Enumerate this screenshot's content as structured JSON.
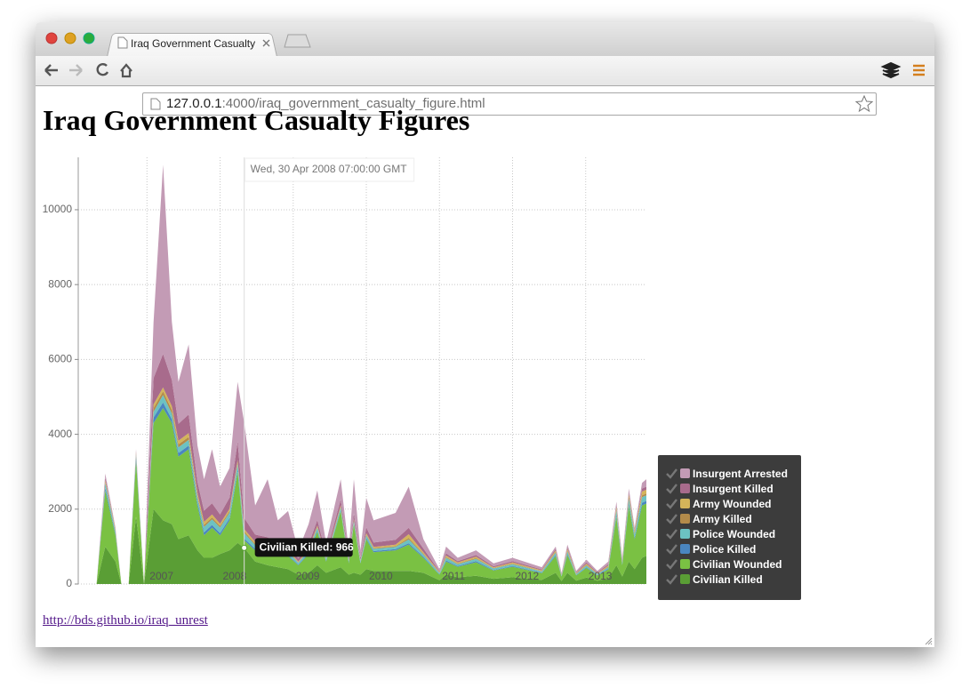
{
  "browser": {
    "tab_title": "Iraq Government Casualty",
    "url_host": "127.0.0.1",
    "url_rest": ":4000/iraq_government_casualty_figure.html"
  },
  "page": {
    "heading": "Iraq Government Casualty Figures",
    "link": "http://bds.github.io/iraq_unrest"
  },
  "chart_data": {
    "type": "stacked_area",
    "x": [
      2006.31,
      2006.43,
      2006.57,
      2006.65,
      2006.75,
      2006.85,
      2006.96,
      2007.09,
      2007.22,
      2007.34,
      2007.43,
      2007.57,
      2007.69,
      2007.78,
      2007.89,
      2008.0,
      2008.13,
      2008.24,
      2008.33,
      2008.48,
      2008.65,
      2008.79,
      2008.93,
      2009.07,
      2009.21,
      2009.33,
      2009.45,
      2009.65,
      2009.76,
      2009.83,
      2009.92,
      2010.0,
      2010.1,
      2010.4,
      2010.58,
      2010.78,
      2011.0,
      2011.09,
      2011.25,
      2011.5,
      2011.74,
      2012.0,
      2012.4,
      2012.59,
      2012.67,
      2012.75,
      2012.87,
      2013.01,
      2013.16,
      2013.31,
      2013.42,
      2013.5,
      2013.59,
      2013.67,
      2013.77,
      2013.83
    ],
    "series": [
      {
        "name": "Insurgent Arrested",
        "color": "#c39bb5",
        "values": [
          0,
          90,
          30,
          0,
          0,
          40,
          0,
          1500,
          5050,
          1550,
          1120,
          1870,
          970,
          840,
          1440,
          740,
          790,
          1590,
          2534,
          780,
          1550,
          630,
          880,
          220,
          540,
          790,
          300,
          540,
          200,
          910,
          200,
          790,
          590,
          720,
          1100,
          250,
          60,
          180,
          90,
          125,
          75,
          90,
          60,
          60,
          30,
          70,
          40,
          75,
          40,
          70,
          100,
          55,
          100,
          60,
          150,
          200
        ]
      },
      {
        "name": "Insurgent Killed",
        "color": "#a86b8c",
        "values": [
          0,
          80,
          20,
          0,
          0,
          30,
          0,
          700,
          900,
          700,
          450,
          500,
          300,
          300,
          300,
          250,
          300,
          500,
          300,
          200,
          230,
          150,
          150,
          80,
          120,
          150,
          90,
          150,
          60,
          150,
          60,
          150,
          120,
          130,
          170,
          100,
          20,
          60,
          35,
          45,
          30,
          35,
          25,
          40,
          15,
          40,
          20,
          35,
          20,
          35,
          40,
          30,
          50,
          30,
          80,
          80
        ]
      },
      {
        "name": "Army Wounded",
        "color": "#d4b45a",
        "values": [
          0,
          50,
          30,
          0,
          0,
          30,
          0,
          100,
          100,
          100,
          100,
          100,
          80,
          80,
          80,
          60,
          60,
          60,
          60,
          50,
          50,
          40,
          40,
          20,
          30,
          40,
          30,
          40,
          20,
          30,
          20,
          40,
          30,
          40,
          100,
          40,
          20,
          40,
          30,
          40,
          20,
          30,
          20,
          40,
          15,
          50,
          15,
          30,
          15,
          30,
          60,
          30,
          70,
          50,
          100,
          100
        ]
      },
      {
        "name": "Army Killed",
        "color": "#b38b4a",
        "values": [
          0,
          30,
          20,
          0,
          0,
          20,
          0,
          100,
          100,
          100,
          80,
          80,
          50,
          50,
          50,
          40,
          40,
          40,
          40,
          30,
          30,
          20,
          20,
          10,
          20,
          20,
          10,
          20,
          10,
          20,
          10,
          20,
          20,
          20,
          40,
          20,
          10,
          20,
          15,
          20,
          10,
          15,
          10,
          20,
          10,
          20,
          10,
          15,
          10,
          15,
          30,
          15,
          40,
          30,
          50,
          50
        ]
      },
      {
        "name": "Police Wounded",
        "color": "#6cc2c2",
        "values": [
          0,
          120,
          60,
          0,
          0,
          100,
          0,
          150,
          200,
          150,
          150,
          150,
          120,
          150,
          150,
          150,
          150,
          150,
          150,
          100,
          100,
          80,
          80,
          50,
          60,
          70,
          50,
          70,
          40,
          60,
          40,
          70,
          60,
          60,
          100,
          60,
          30,
          70,
          50,
          60,
          40,
          50,
          30,
          60,
          20,
          60,
          25,
          45,
          25,
          40,
          120,
          50,
          130,
          90,
          150,
          150
        ]
      },
      {
        "name": "Police Killed",
        "color": "#4a86c0",
        "values": [
          0,
          80,
          40,
          0,
          0,
          80,
          0,
          150,
          150,
          100,
          100,
          100,
          80,
          80,
          80,
          60,
          60,
          60,
          50,
          40,
          40,
          30,
          30,
          20,
          30,
          30,
          20,
          30,
          20,
          30,
          20,
          30,
          30,
          30,
          40,
          30,
          10,
          30,
          20,
          30,
          15,
          20,
          15,
          30,
          10,
          30,
          10,
          20,
          10,
          20,
          50,
          20,
          60,
          40,
          70,
          70
        ]
      },
      {
        "name": "Civilian Wounded",
        "color": "#7ac143",
        "values": [
          0,
          1500,
          700,
          0,
          0,
          1500,
          0,
          2300,
          3000,
          2700,
          2200,
          2300,
          1200,
          600,
          800,
          500,
          800,
          1900,
          200,
          300,
          300,
          300,
          350,
          250,
          500,
          900,
          300,
          1500,
          300,
          1300,
          300,
          800,
          500,
          550,
          700,
          400,
          150,
          350,
          280,
          360,
          220,
          280,
          180,
          450,
          120,
          480,
          140,
          260,
          140,
          240,
          1300,
          300,
          1500,
          800,
          1400,
          1400
        ]
      },
      {
        "name": "Civilian Killed",
        "color": "#5a9e35",
        "values": [
          0,
          1000,
          600,
          0,
          0,
          1800,
          0,
          2000,
          1700,
          1600,
          1200,
          1300,
          900,
          700,
          700,
          800,
          900,
          1100,
          966,
          600,
          500,
          450,
          400,
          250,
          300,
          500,
          300,
          450,
          250,
          300,
          250,
          400,
          350,
          350,
          350,
          300,
          100,
          250,
          180,
          220,
          140,
          180,
          110,
          300,
          80,
          300,
          90,
          170,
          90,
          150,
          500,
          200,
          600,
          400,
          700,
          750
        ]
      }
    ],
    "xlim": [
      2006.06,
      2013.83
    ],
    "xticks": [
      2007,
      2008,
      2009,
      2010,
      2011,
      2012,
      2013
    ],
    "ylim": [
      0,
      11400
    ],
    "yticks": [
      0,
      2000,
      4000,
      6000,
      8000,
      10000
    ],
    "grid": true,
    "legend": "right",
    "tooltip": {
      "date": "Wed, 30 Apr 2008 07:00:00 GMT",
      "label": "Civilian Killed: 966",
      "series": 7,
      "index": 18
    }
  }
}
